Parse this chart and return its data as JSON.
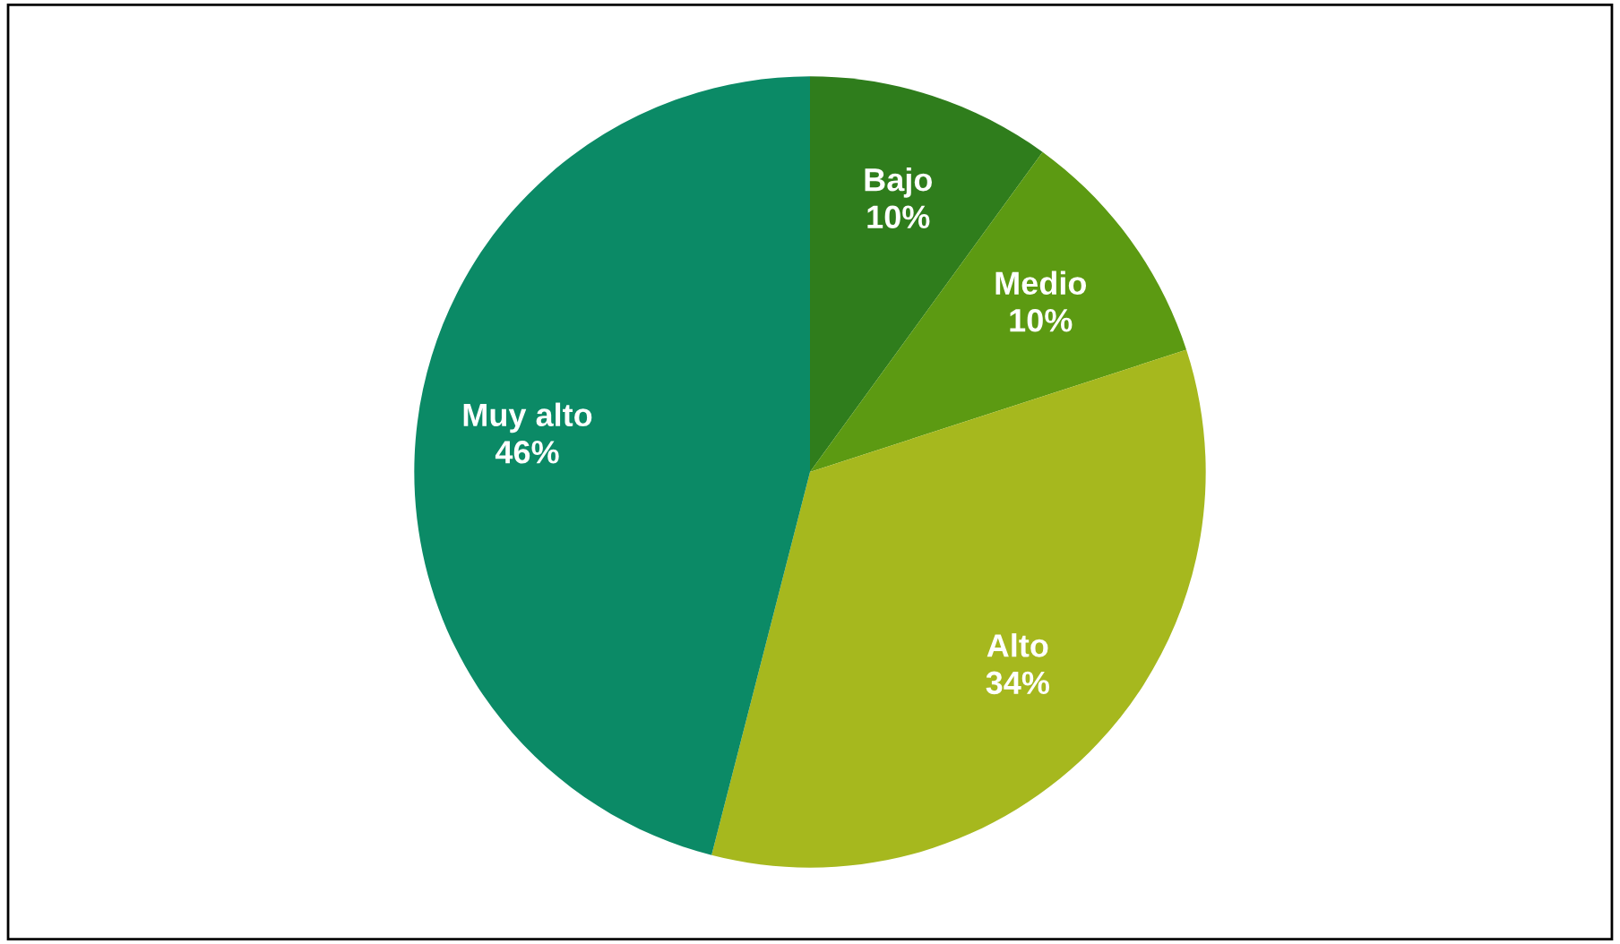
{
  "chart_data": {
    "type": "pie",
    "categories": [
      "Bajo",
      "Medio",
      "Alto",
      "Muy alto"
    ],
    "values": [
      10,
      10,
      34,
      46
    ],
    "colors": [
      "#2f7d1c",
      "#5c9a12",
      "#a6b81e",
      "#0b8a66"
    ],
    "value_labels": [
      "10%",
      "10%",
      "34%",
      "46%"
    ]
  }
}
